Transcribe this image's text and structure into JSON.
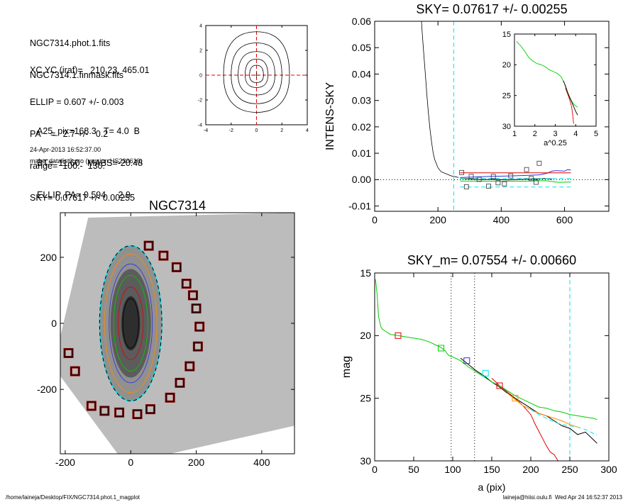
{
  "info": {
    "lines_a": [
      "NGC7314.phot.1.fits",
      "NGC7314.1.finmask.fits"
    ],
    "lines_b": [
      "XC,YC (iraf)=   210.23, 465.01",
      "ELLIP = 0.607 +/- 0.003",
      "PA    =   2.7 +/-   0.2",
      "range=  100.-  130.",
      "SKY= 0.07617 +/- 0.00255"
    ],
    "lines_c": [
      "A25_pix=168.3   T= 4.0  B",
      "BT=  11.60   MABS=-20.48",
      "ELLIP, PA= 0.594     2.9"
    ],
    "timestamp": "24-Apr-2013 16:52:37.00",
    "program": "make_datalist0.pro (version HS230610)"
  },
  "footer": {
    "left": "/home/laineja/Desktop/FIX/NGC7314.phot.1_magplot",
    "right": "laineja@hiisi.oulu.fi  Wed Apr 24 16:52:37 2013"
  },
  "colors": {
    "axis": "#000000",
    "cyan": "#00e5ee",
    "red": "#e00000",
    "green": "#00cc00",
    "blue": "#3030e0",
    "orange": "#ff8c00",
    "gray": "#b0b0b0",
    "darkred": "#8b0000"
  },
  "chart_data": [
    {
      "id": "contour",
      "type": "contour",
      "xlim": [
        -4,
        4
      ],
      "ylim": [
        -4,
        4
      ],
      "xticks": [
        -4,
        -2,
        0,
        2,
        4
      ],
      "yticks": [
        -4,
        -2,
        0,
        2,
        4
      ],
      "center": [
        0,
        0
      ],
      "levels": [
        {
          "rx": 2.6,
          "top": 3.5,
          "bottom": -3.0
        },
        {
          "rx": 2.0,
          "top": 2.6,
          "bottom": -2.3
        },
        {
          "rx": 1.45,
          "top": 1.9,
          "bottom": -1.6
        },
        {
          "rx": 0.9,
          "top": 1.3,
          "bottom": -1.0
        },
        {
          "rx": 0.55,
          "top": 0.8,
          "bottom": -0.6
        }
      ]
    },
    {
      "id": "sky",
      "type": "line",
      "title": "SKY= 0.07617 +/- 0.00255",
      "xlabel": "",
      "ylabel": "INTENS-SKY",
      "xlim": [
        0,
        740
      ],
      "ylim": [
        -0.012,
        0.06
      ],
      "xticks": [
        0,
        200,
        400,
        600
      ],
      "yticks": [
        -0.01,
        0.0,
        0.01,
        0.02,
        0.03,
        0.04,
        0.05,
        0.06
      ],
      "ytick_labels": [
        "-0.01",
        "0.00",
        "0.01",
        "0.02",
        "0.03",
        "0.04",
        "0.05",
        "0.06"
      ],
      "vline_x": 250,
      "profile": {
        "x": [
          148,
          150,
          155,
          160,
          165,
          170,
          175,
          180,
          185,
          190,
          195,
          200,
          210,
          220,
          230,
          240,
          250,
          255,
          265
        ],
        "y": [
          0.06,
          0.056,
          0.048,
          0.04,
          0.032,
          0.025,
          0.019,
          0.014,
          0.01,
          0.0075,
          0.006,
          0.0045,
          0.003,
          0.0025,
          0.002,
          0.0015,
          0.0012,
          0.0011,
          0.0008
        ]
      },
      "series": [
        {
          "color": "blue",
          "x": [
            270,
            360,
            430,
            480,
            520,
            545,
            560,
            570,
            580,
            600,
            610,
            620
          ],
          "y": [
            0.0008,
            0.0012,
            0.0014,
            0.0016,
            0.0018,
            0.0024,
            0.0032,
            0.0034,
            0.0034,
            0.0032,
            0.0038,
            0.0036
          ]
        },
        {
          "color": "red",
          "x": [
            270,
            620
          ],
          "y": [
            0.0026,
            0.0026
          ]
        },
        {
          "color": "black",
          "x": [
            270,
            300,
            340,
            380,
            420,
            460,
            500,
            520,
            540,
            560
          ],
          "y": [
            0.0005,
            0.0002,
            0.0,
            0.0001,
            -0.0001,
            0.0001,
            0.0002,
            0.0003,
            0.0004,
            0.0002
          ]
        },
        {
          "color": "green",
          "x": [
            270,
            340,
            400,
            460,
            500,
            540,
            580,
            620
          ],
          "y": [
            -0.0005,
            -0.0006,
            -0.0006,
            -0.0006,
            -0.0005,
            -0.0004,
            -0.001,
            -0.0009
          ]
        },
        {
          "color": "cyan",
          "dashed": true,
          "x": [
            270,
            620
          ],
          "y": [
            -0.0028,
            -0.0028
          ]
        },
        {
          "color": "cyan",
          "dashed": true,
          "x": [
            270,
            620
          ],
          "y": [
            0.0004,
            0.0004
          ]
        }
      ],
      "markers": {
        "x": [
          275,
          290,
          305,
          330,
          360,
          375,
          390,
          410,
          430,
          480,
          495,
          510,
          520
        ],
        "y": [
          0.0027,
          -0.0027,
          0.0012,
          0.0001,
          -0.0025,
          0.0012,
          -0.0012,
          -0.0016,
          0.0014,
          0.0038,
          0.0004,
          -0.001,
          0.0062
        ]
      }
    },
    {
      "id": "inset",
      "type": "line",
      "xlabel": "a^0.25",
      "xlim": [
        1,
        5
      ],
      "ylim": [
        15,
        30
      ],
      "yreversed": true,
      "xticks": [
        1,
        2,
        3,
        4,
        5
      ],
      "yticks": [
        15,
        20,
        25,
        30
      ],
      "series": [
        {
          "color": "green",
          "x": [
            1.1,
            1.3,
            1.5,
            1.7,
            1.9,
            2.1,
            2.3,
            2.5,
            2.7,
            2.9,
            3.1,
            3.3,
            3.5,
            3.6,
            3.7,
            3.8,
            3.9,
            4.0,
            4.1
          ],
          "y": [
            16.2,
            16.9,
            17.8,
            18.8,
            19.4,
            19.8,
            20.0,
            20.3,
            20.8,
            21.1,
            21.4,
            22.0,
            23.4,
            24.4,
            25.2,
            25.9,
            26.4,
            26.7,
            26.9
          ]
        },
        {
          "color": "black",
          "x": [
            3.4,
            3.5,
            3.6,
            3.7,
            3.8,
            3.9,
            4.0,
            4.1
          ],
          "y": [
            22.6,
            23.5,
            24.5,
            25.3,
            26.0,
            26.8,
            27.6,
            28.2
          ]
        },
        {
          "color": "red",
          "x": [
            3.5,
            3.6,
            3.7,
            3.8,
            3.85,
            3.9
          ],
          "y": [
            23.8,
            24.7,
            25.6,
            26.8,
            28.0,
            29.6
          ]
        }
      ]
    },
    {
      "id": "image",
      "type": "image",
      "title": "NGC7314",
      "xlim": [
        -215,
        500
      ],
      "ylim": [
        -395,
        335
      ],
      "xticks": [
        -200,
        0,
        200,
        400
      ],
      "yticks": [
        -200,
        0,
        200
      ],
      "ellipse": {
        "rx": 95,
        "ry": 235
      },
      "isophotes": [
        {
          "color": "orange",
          "rx": 80,
          "ry": 210
        },
        {
          "color": "blue",
          "rx": 66,
          "ry": 180
        },
        {
          "color": "green",
          "rx": 52,
          "ry": 145
        },
        {
          "color": "red",
          "rx": 38,
          "ry": 110
        },
        {
          "color": "black",
          "rx": 24,
          "ry": 75
        }
      ],
      "boxes": {
        "x": [
          55,
          100,
          140,
          170,
          190,
          200,
          210,
          205,
          180,
          150,
          120,
          60,
          20,
          -35,
          -80,
          -120,
          -170,
          -190
        ],
        "y": [
          235,
          205,
          170,
          120,
          85,
          45,
          -10,
          -70,
          -130,
          -180,
          -225,
          -260,
          -275,
          -270,
          -265,
          -250,
          -145,
          -90
        ]
      }
    },
    {
      "id": "mag",
      "type": "line",
      "title": "SKY_m=  0.07554 +/- 0.00660",
      "xlabel": "a (pix)",
      "ylabel": "mag",
      "xlim": [
        0,
        300
      ],
      "ylim": [
        15,
        30
      ],
      "yreversed": true,
      "xticks": [
        0,
        50,
        100,
        150,
        200,
        250,
        300
      ],
      "yticks": [
        15,
        20,
        25,
        30
      ],
      "vlines_dotted": [
        98,
        128
      ],
      "vline_x": 250,
      "series": [
        {
          "color": "red",
          "x": [
            150,
            160,
            170,
            180,
            190,
            200,
            205,
            210,
            215,
            220,
            225,
            230,
            235
          ],
          "y": [
            23.4,
            24.0,
            24.5,
            25.0,
            25.6,
            26.3,
            27.0,
            27.6,
            28.2,
            28.8,
            29.3,
            29.5,
            30.0
          ]
        },
        {
          "color": "black",
          "x": [
            110,
            120,
            130,
            140,
            150,
            160,
            170,
            180,
            190,
            200,
            210,
            220,
            230,
            240,
            250,
            260,
            270,
            280,
            285
          ],
          "y": [
            21.8,
            22.3,
            22.8,
            23.2,
            23.7,
            24.1,
            24.6,
            25.0,
            25.4,
            25.8,
            26.2,
            26.4,
            26.8,
            27.2,
            27.4,
            27.9,
            27.7,
            28.3,
            28.6
          ]
        },
        {
          "color": "orange",
          "x": [
            170,
            180,
            190,
            200,
            210,
            220,
            230,
            240,
            250,
            260
          ],
          "y": [
            24.6,
            25.1,
            25.6,
            25.9,
            26.2,
            26.4,
            26.6,
            26.8,
            27.1,
            27.3
          ]
        },
        {
          "color": "cyan",
          "dashed": true,
          "x": [
            200,
            210,
            220,
            230,
            240,
            250,
            260,
            270,
            280,
            285
          ],
          "y": [
            25.9,
            26.3,
            26.6,
            26.9,
            27.1,
            27.2,
            27.3,
            27.5,
            27.8,
            27.9
          ]
        },
        {
          "color": "green",
          "x": [
            1,
            3,
            5,
            8,
            10,
            15,
            20,
            30,
            40,
            50,
            60,
            70,
            80,
            85,
            90,
            95,
            100,
            110,
            120,
            130,
            140,
            150,
            160,
            170,
            180,
            190,
            200,
            210,
            220,
            230,
            240,
            250,
            260,
            270,
            280,
            285
          ],
          "y": [
            15.5,
            16.6,
            18.5,
            19.3,
            19.5,
            19.7,
            19.9,
            20.0,
            20.1,
            20.2,
            20.3,
            20.5,
            20.8,
            20.95,
            21.2,
            21.6,
            21.7,
            22.0,
            22.5,
            22.9,
            23.3,
            23.7,
            24.0,
            24.4,
            24.8,
            25.1,
            25.4,
            25.7,
            25.8,
            26.0,
            26.1,
            26.3,
            26.4,
            26.5,
            26.6,
            26.7
          ]
        }
      ],
      "markers": [
        {
          "color": "red",
          "x": 30,
          "y": 20.0
        },
        {
          "color": "green",
          "x": 85,
          "y": 21.0
        },
        {
          "color": "blue",
          "x": 118,
          "y": 22.0
        },
        {
          "color": "cyan",
          "x": 142,
          "y": 23.0
        },
        {
          "color": "red",
          "x": 160,
          "y": 24.0
        },
        {
          "color": "orange",
          "x": 180,
          "y": 25.0
        }
      ]
    }
  ]
}
